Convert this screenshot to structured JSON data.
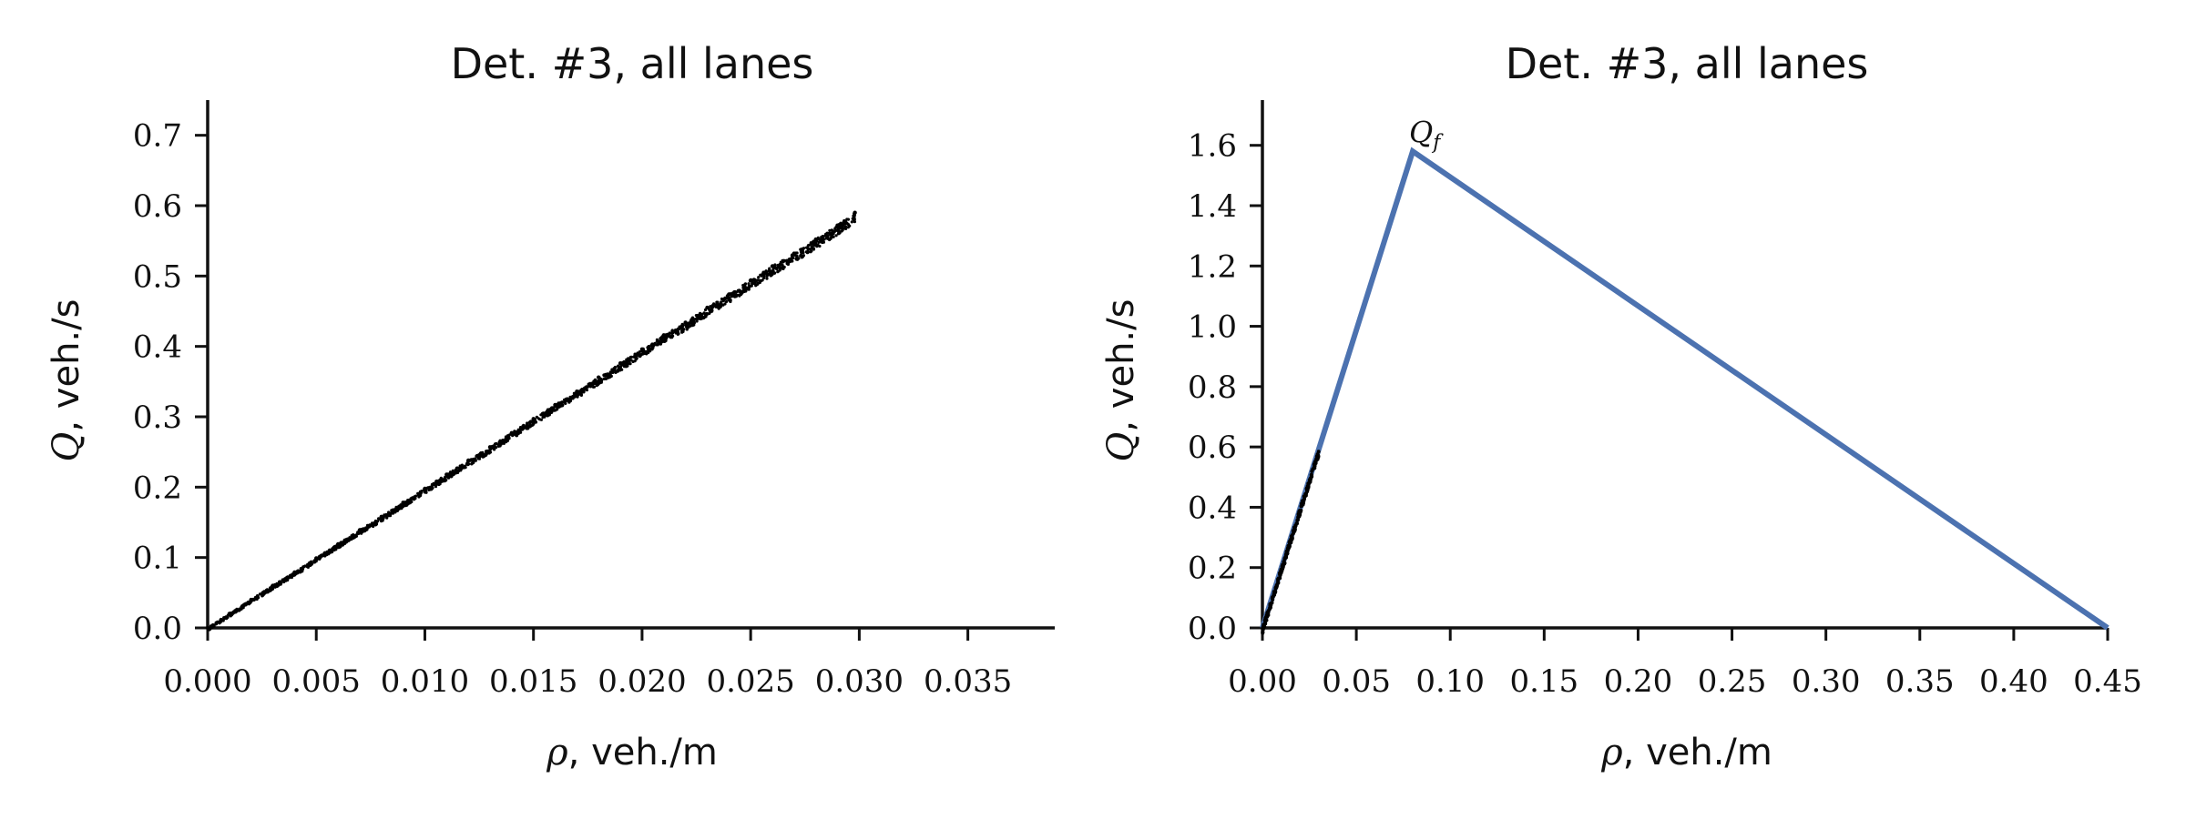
{
  "chart_data": [
    {
      "type": "scatter",
      "title": "Det. #3, all lanes",
      "xlabel_symbol": "ρ",
      "xlabel_unit": ", veh./m",
      "ylabel_symbol": "Q",
      "ylabel_unit": ", veh./s",
      "xlim": [
        0.0,
        0.039
      ],
      "ylim": [
        0.0,
        0.75
      ],
      "xticks": [
        "0.000",
        "0.005",
        "0.010",
        "0.015",
        "0.020",
        "0.025",
        "0.030",
        "0.035"
      ],
      "xtick_values": [
        0.0,
        0.005,
        0.01,
        0.015,
        0.02,
        0.025,
        0.03,
        0.035
      ],
      "yticks": [
        "0.0",
        "0.1",
        "0.2",
        "0.3",
        "0.4",
        "0.5",
        "0.6",
        "0.7"
      ],
      "ytick_values": [
        0.0,
        0.1,
        0.2,
        0.3,
        0.4,
        0.5,
        0.6,
        0.7
      ],
      "grid": false,
      "point_color": "#000000",
      "series": [
        {
          "x": [
            0.0,
            0.001,
            0.002,
            0.003,
            0.004,
            0.005,
            0.006,
            0.007,
            0.008,
            0.009,
            0.01,
            0.011,
            0.012,
            0.013,
            0.014,
            0.015,
            0.016,
            0.017,
            0.018,
            0.019,
            0.02,
            0.021,
            0.022,
            0.023,
            0.024,
            0.025,
            0.026,
            0.027,
            0.028,
            0.029,
            0.0298
          ],
          "y": [
            0.0,
            0.02,
            0.04,
            0.06,
            0.079,
            0.099,
            0.119,
            0.139,
            0.158,
            0.178,
            0.198,
            0.218,
            0.238,
            0.257,
            0.277,
            0.297,
            0.317,
            0.336,
            0.356,
            0.376,
            0.396,
            0.416,
            0.434,
            0.455,
            0.474,
            0.494,
            0.514,
            0.532,
            0.552,
            0.572,
            0.59
          ]
        }
      ]
    },
    {
      "type": "line",
      "title": "Det. #3, all lanes",
      "xlabel_symbol": "ρ",
      "xlabel_unit": ", veh./m",
      "ylabel_symbol": "Q",
      "ylabel_unit": ", veh./s",
      "xlim": [
        0.0,
        0.45
      ],
      "ylim": [
        0.0,
        1.75
      ],
      "xticks": [
        "0.00",
        "0.05",
        "0.10",
        "0.15",
        "0.20",
        "0.25",
        "0.30",
        "0.35",
        "0.40",
        "0.45"
      ],
      "xtick_values": [
        0.0,
        0.05,
        0.1,
        0.15,
        0.2,
        0.25,
        0.3,
        0.35,
        0.4,
        0.45
      ],
      "yticks": [
        "0.0",
        "0.2",
        "0.4",
        "0.6",
        "0.8",
        "1.0",
        "1.2",
        "1.4",
        "1.6"
      ],
      "ytick_values": [
        0.0,
        0.2,
        0.4,
        0.6,
        0.8,
        1.0,
        1.2,
        1.4,
        1.6
      ],
      "grid": false,
      "line_color": "#4c72b0",
      "point_color": "#000000",
      "annotation": {
        "text": "Qf",
        "x": 0.08,
        "y": 1.58
      },
      "series": [
        {
          "x": [
            0.0,
            0.08,
            0.45
          ],
          "y": [
            0.0,
            1.58,
            0.0
          ]
        },
        {
          "x": [
            0.0,
            0.005,
            0.01,
            0.015,
            0.02,
            0.025,
            0.03
          ],
          "y": [
            0.0,
            0.099,
            0.198,
            0.297,
            0.396,
            0.494,
            0.59
          ]
        }
      ]
    }
  ]
}
